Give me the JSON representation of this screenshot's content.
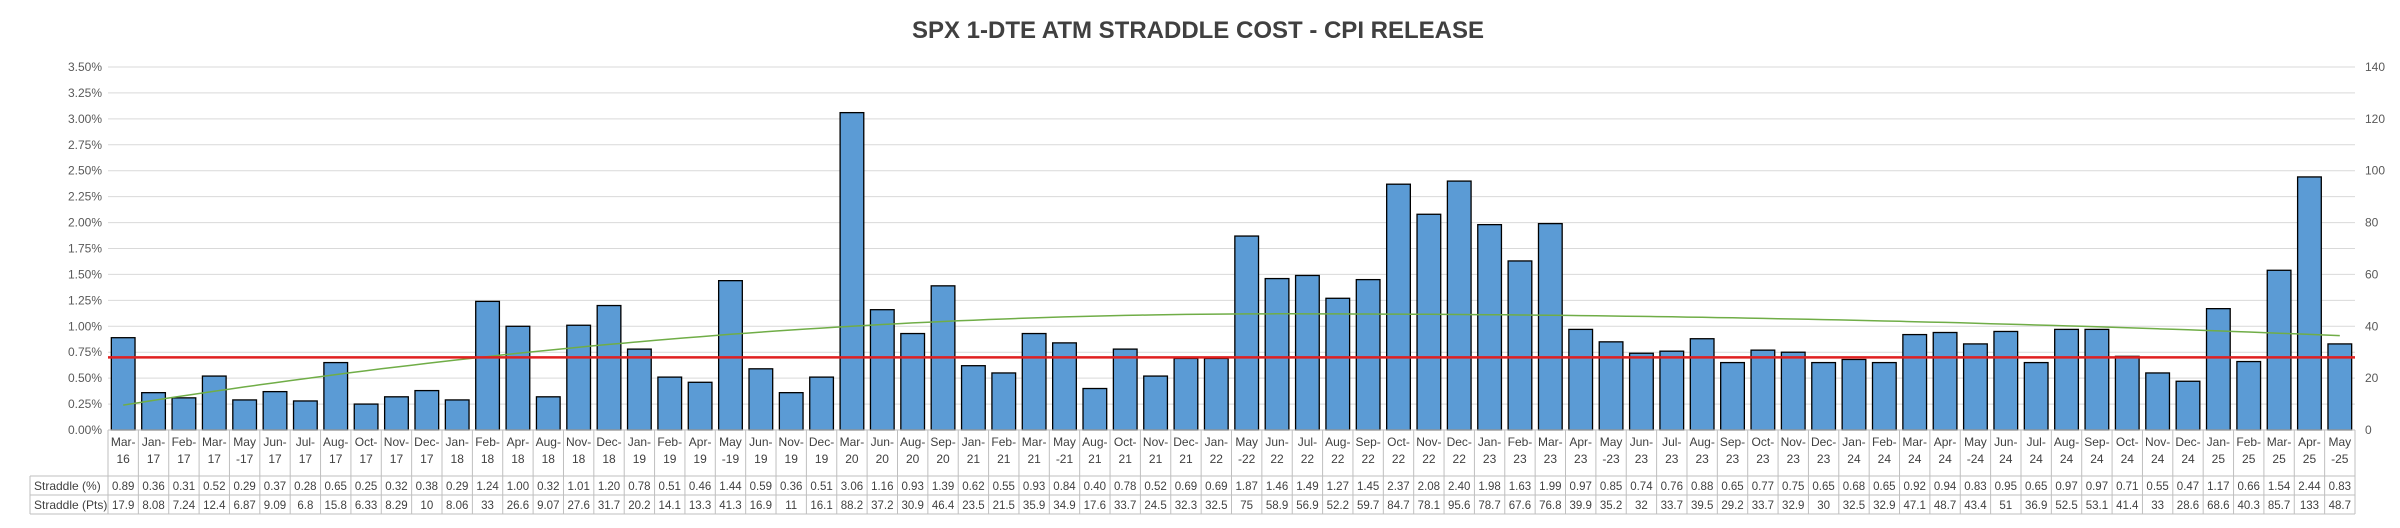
{
  "chart_data": {
    "type": "bar",
    "title": "SPX 1-DTE ATM STRADDLE COST - CPI RELEASE",
    "categories": [
      [
        "Mar-",
        "16"
      ],
      [
        "Jan-",
        "17"
      ],
      [
        "Feb-",
        "17"
      ],
      [
        "Mar-",
        "17"
      ],
      [
        "May",
        "-17"
      ],
      [
        "Jun-",
        "17"
      ],
      [
        "Jul-",
        "17"
      ],
      [
        "Aug-",
        "17"
      ],
      [
        "Oct-",
        "17"
      ],
      [
        "Nov-",
        "17"
      ],
      [
        "Dec-",
        "17"
      ],
      [
        "Jan-",
        "18"
      ],
      [
        "Feb-",
        "18"
      ],
      [
        "Apr-",
        "18"
      ],
      [
        "Aug-",
        "18"
      ],
      [
        "Nov-",
        "18"
      ],
      [
        "Dec-",
        "18"
      ],
      [
        "Jan-",
        "19"
      ],
      [
        "Feb-",
        "19"
      ],
      [
        "Apr-",
        "19"
      ],
      [
        "May",
        "-19"
      ],
      [
        "Jun-",
        "19"
      ],
      [
        "Nov-",
        "19"
      ],
      [
        "Dec-",
        "19"
      ],
      [
        "Mar-",
        "20"
      ],
      [
        "Jun-",
        "20"
      ],
      [
        "Aug-",
        "20"
      ],
      [
        "Sep-",
        "20"
      ],
      [
        "Jan-",
        "21"
      ],
      [
        "Feb-",
        "21"
      ],
      [
        "Mar-",
        "21"
      ],
      [
        "May",
        "-21"
      ],
      [
        "Aug-",
        "21"
      ],
      [
        "Oct-",
        "21"
      ],
      [
        "Nov-",
        "21"
      ],
      [
        "Dec-",
        "21"
      ],
      [
        "Jan-",
        "22"
      ],
      [
        "May",
        "-22"
      ],
      [
        "Jun-",
        "22"
      ],
      [
        "Jul-",
        "22"
      ],
      [
        "Aug-",
        "22"
      ],
      [
        "Sep-",
        "22"
      ],
      [
        "Oct-",
        "22"
      ],
      [
        "Nov-",
        "22"
      ],
      [
        "Dec-",
        "22"
      ],
      [
        "Jan-",
        "23"
      ],
      [
        "Feb-",
        "23"
      ],
      [
        "Mar-",
        "23"
      ],
      [
        "Apr-",
        "23"
      ],
      [
        "May",
        "-23"
      ],
      [
        "Jun-",
        "23"
      ],
      [
        "Jul-",
        "23"
      ],
      [
        "Aug-",
        "23"
      ],
      [
        "Sep-",
        "23"
      ],
      [
        "Oct-",
        "23"
      ],
      [
        "Nov-",
        "23"
      ],
      [
        "Dec-",
        "23"
      ],
      [
        "Jan-",
        "24"
      ],
      [
        "Feb-",
        "24"
      ],
      [
        "Mar-",
        "24"
      ],
      [
        "Apr-",
        "24"
      ],
      [
        "May",
        "-24"
      ],
      [
        "Jun-",
        "24"
      ],
      [
        "Jul-",
        "24"
      ],
      [
        "Aug-",
        "24"
      ],
      [
        "Sep-",
        "24"
      ],
      [
        "Oct-",
        "24"
      ],
      [
        "Nov-",
        "24"
      ],
      [
        "Dec-",
        "24"
      ],
      [
        "Jan-",
        "25"
      ],
      [
        "Feb-",
        "25"
      ],
      [
        "Mar-",
        "25"
      ],
      [
        "Apr-",
        "25"
      ],
      [
        "May",
        "-25"
      ]
    ],
    "series": [
      {
        "name": "Straddle (%)",
        "axis": "left",
        "color": "#5b9bd5",
        "values": [
          0.89,
          0.36,
          0.31,
          0.52,
          0.29,
          0.37,
          0.28,
          0.65,
          0.25,
          0.32,
          0.38,
          0.29,
          1.24,
          1.0,
          0.32,
          1.01,
          1.2,
          0.78,
          0.51,
          0.46,
          1.44,
          0.59,
          0.36,
          0.51,
          3.06,
          1.16,
          0.93,
          1.39,
          0.62,
          0.55,
          0.93,
          0.84,
          0.4,
          0.78,
          0.52,
          0.69,
          0.69,
          1.87,
          1.46,
          1.49,
          1.27,
          1.45,
          2.37,
          2.08,
          2.4,
          1.98,
          1.63,
          1.99,
          0.97,
          0.85,
          0.74,
          0.76,
          0.88,
          0.65,
          0.77,
          0.75,
          0.65,
          0.68,
          0.65,
          0.92,
          0.94,
          0.83,
          0.95,
          0.65,
          0.97,
          0.97,
          0.71,
          0.55,
          0.47,
          1.17,
          0.66,
          1.54,
          2.44,
          0.83
        ]
      },
      {
        "name": "Straddle (Pts)",
        "axis": "right",
        "values": [
          17.9,
          8.08,
          7.24,
          12.4,
          6.87,
          9.09,
          6.8,
          15.8,
          6.33,
          8.29,
          10,
          8.06,
          33,
          26.6,
          9.07,
          27.6,
          31.7,
          20.2,
          14.1,
          13.3,
          41.3,
          16.9,
          11,
          16.1,
          88.2,
          37.2,
          30.9,
          46.4,
          23.5,
          21.5,
          35.9,
          34.9,
          17.6,
          33.7,
          24.5,
          32.3,
          32.5,
          75,
          58.9,
          56.9,
          52.2,
          59.7,
          84.7,
          78.1,
          95.6,
          78.7,
          67.6,
          76.8,
          39.9,
          35.2,
          32,
          33.7,
          39.5,
          29.2,
          33.7,
          32.9,
          30,
          32.5,
          32.9,
          47.1,
          48.7,
          43.4,
          51,
          36.9,
          52.5,
          53.1,
          41.4,
          33,
          28.6,
          68.6,
          40.3,
          85.7,
          133,
          48.7
        ]
      }
    ],
    "table_row_labels": [
      "Straddle (%)",
      "Straddle (Pts)"
    ],
    "table_percent_values": [
      "0.89",
      "0.36",
      "0.31",
      "0.52",
      "0.29",
      "0.37",
      "0.28",
      "0.65",
      "0.25",
      "0.32",
      "0.38",
      "0.29",
      "1.24",
      "1.00",
      "0.32",
      "1.01",
      "1.20",
      "0.78",
      "0.51",
      "0.46",
      "1.44",
      "0.59",
      "0.36",
      "0.51",
      "3.06",
      "1.16",
      "0.93",
      "1.39",
      "0.62",
      "0.55",
      "0.93",
      "0.84",
      "0.40",
      "0.78",
      "0.52",
      "0.69",
      "0.69",
      "1.87",
      "1.46",
      "1.49",
      "1.27",
      "1.45",
      "2.37",
      "2.08",
      "2.40",
      "1.98",
      "1.63",
      "1.99",
      "0.97",
      "0.85",
      "0.74",
      "0.76",
      "0.88",
      "0.65",
      "0.77",
      "0.75",
      "0.65",
      "0.68",
      "0.65",
      "0.92",
      "0.94",
      "0.83",
      "0.95",
      "0.65",
      "0.97",
      "0.97",
      "0.71",
      "0.55",
      "0.47",
      "1.17",
      "0.66",
      "1.54",
      "2.44",
      "0.83"
    ],
    "average_line": {
      "value": 0.7,
      "color": "#e02020"
    },
    "trend_line": {
      "type": "polynomial",
      "color": "#70ad47",
      "start": 0.24,
      "peak": 1.12,
      "peak_index": 38,
      "end": 0.91
    },
    "left_axis": {
      "min": 0,
      "max": 3.5,
      "step": 0.25,
      "ticks": [
        "0.00%",
        "0.25%",
        "0.50%",
        "0.75%",
        "1.00%",
        "1.25%",
        "1.50%",
        "1.75%",
        "2.00%",
        "2.25%",
        "2.50%",
        "2.75%",
        "3.00%",
        "3.25%",
        "3.50%"
      ]
    },
    "right_axis": {
      "min": 0,
      "max": 140,
      "step": 20,
      "ticks": [
        "0",
        "20",
        "40",
        "60",
        "80",
        "100",
        "120",
        "140"
      ]
    },
    "grid": true
  }
}
